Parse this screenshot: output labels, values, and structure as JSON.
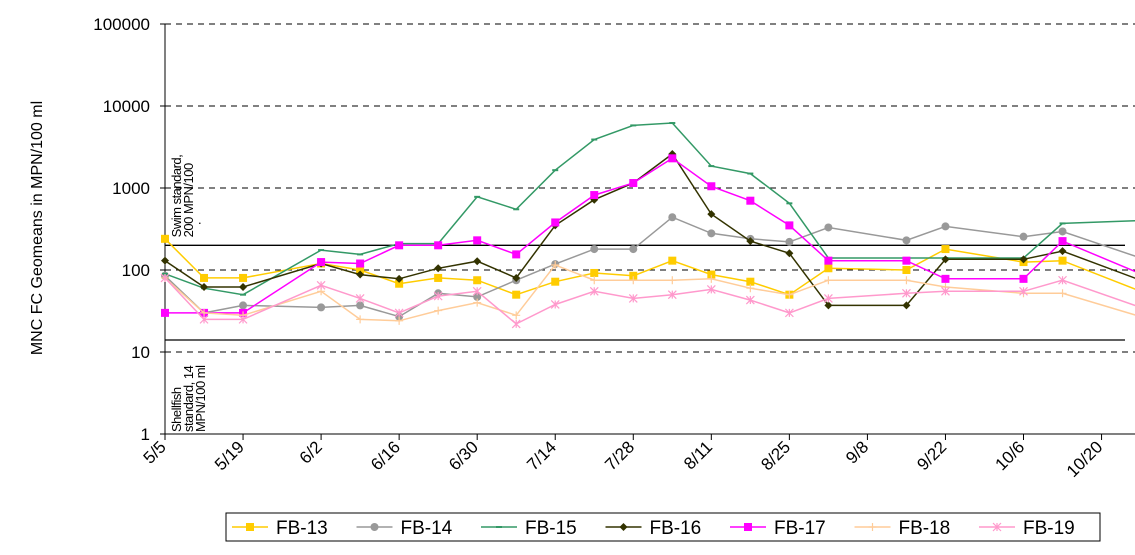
{
  "chart_data": {
    "type": "line",
    "y_label": "MNC FC Geomeans in MPN/100 ml",
    "log_scale": true,
    "grid": true,
    "legend": "bottom",
    "x": [
      125,
      132,
      139,
      153,
      160,
      167,
      174,
      181,
      188,
      195,
      202,
      209,
      216,
      223,
      230,
      237,
      244,
      258,
      265,
      279,
      286,
      300
    ],
    "xlim": [
      125,
      299
    ],
    "xticks": [
      {
        "value": 125,
        "label": "5/5"
      },
      {
        "value": 139,
        "label": "5/19"
      },
      {
        "value": 153,
        "label": "6/2"
      },
      {
        "value": 167,
        "label": "6/16"
      },
      {
        "value": 181,
        "label": "6/30"
      },
      {
        "value": 195,
        "label": "7/14"
      },
      {
        "value": 209,
        "label": "7/28"
      },
      {
        "value": 223,
        "label": "8/11"
      },
      {
        "value": 237,
        "label": "8/25"
      },
      {
        "value": 251,
        "label": "9/8"
      },
      {
        "value": 265,
        "label": "9/22"
      },
      {
        "value": 279,
        "label": "10/6"
      },
      {
        "value": 293,
        "label": "10/20"
      }
    ],
    "ylim": [
      1,
      100000
    ],
    "yticks": [
      1,
      10,
      100,
      1000,
      10000,
      100000
    ],
    "reference_lines": [
      {
        "value": 200,
        "label": [
          "Swim standard,",
          "200 MPN/100"
        ]
      },
      {
        "value": 14,
        "label": [
          "Shellfish",
          "standard, 14",
          "MPN/100 ml"
        ]
      }
    ],
    "annotations": [
      "."
    ],
    "series": [
      {
        "name": "FB-13",
        "color": "#ffcc00",
        "marker": "square",
        "values": [
          240,
          80,
          80,
          120,
          100,
          68,
          80,
          75,
          50,
          72,
          92,
          85,
          130,
          88,
          72,
          50,
          105,
          100,
          180,
          125,
          130,
          55
        ]
      },
      {
        "name": "FB-14",
        "color": "#999999",
        "marker": "circle",
        "values": [
          85,
          30,
          37,
          35,
          37,
          27,
          52,
          47,
          75,
          118,
          180,
          180,
          440,
          280,
          240,
          220,
          330,
          230,
          340,
          255,
          295,
          140
        ]
      },
      {
        "name": "FB-15",
        "color": "#339966",
        "marker": "dash",
        "values": [
          90,
          60,
          50,
          175,
          155,
          210,
          210,
          780,
          550,
          1650,
          3900,
          5800,
          6200,
          1850,
          1500,
          650,
          140,
          140,
          140,
          140,
          370,
          400
        ]
      },
      {
        "name": "FB-16",
        "color": "#333300",
        "marker": "diamond",
        "values": [
          130,
          62,
          62,
          120,
          88,
          78,
          105,
          128,
          80,
          350,
          720,
          1150,
          2600,
          480,
          225,
          160,
          37,
          37,
          135,
          135,
          170,
          75
        ]
      },
      {
        "name": "FB-17",
        "color": "#ff00ff",
        "marker": "square",
        "values": [
          30,
          30,
          30,
          125,
          120,
          200,
          200,
          230,
          155,
          380,
          820,
          1150,
          2300,
          1050,
          700,
          350,
          130,
          130,
          78,
          78,
          225,
          90
        ]
      },
      {
        "name": "FB-18",
        "color": "#ffcc99",
        "marker": "plus",
        "values": [
          80,
          30,
          28,
          55,
          25,
          24,
          32,
          40,
          28,
          115,
          75,
          75,
          75,
          78,
          60,
          50,
          75,
          75,
          62,
          52,
          52,
          27
        ]
      },
      {
        "name": "FB-19",
        "color": "#ff99cc",
        "marker": "star",
        "values": [
          80,
          25,
          25,
          65,
          45,
          30,
          48,
          55,
          22,
          38,
          55,
          45,
          50,
          58,
          43,
          30,
          45,
          52,
          55,
          55,
          75,
          35
        ]
      }
    ]
  }
}
